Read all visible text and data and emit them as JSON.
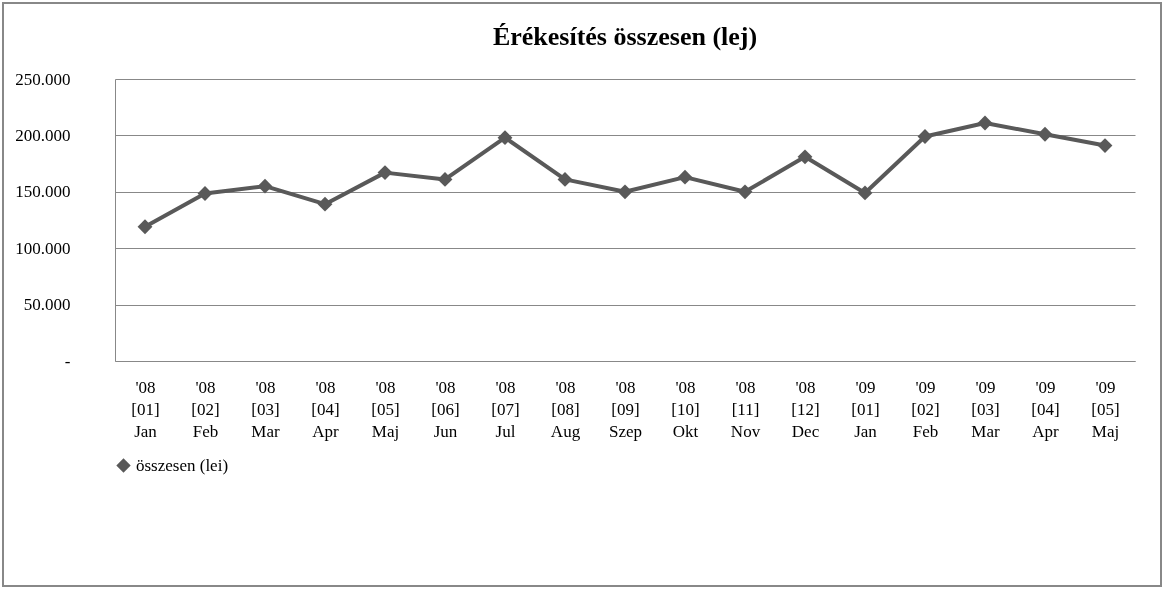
{
  "chart_data": {
    "type": "line",
    "title": "Érékesítés összesen  (lej)",
    "categories": [
      "'08\n[01]\nJan",
      "'08\n[02]\nFeb",
      "'08\n[03]\nMar",
      "'08\n[04]\nApr",
      "'08\n[05]\nMaj",
      "'08\n[06]\nJun",
      "'08\n[07]\nJul",
      "'08\n[08]\nAug",
      "'08\n[09]\nSzep",
      "'08\n[10]\nOkt",
      "'08\n[11]\nNov",
      "'08\n[12]\nDec",
      "'09\n[01]\nJan",
      "'09\n[02]\nFeb",
      "'09\n[03]\nMar",
      "'09\n[04]\nApr",
      "'09\n[05]\nMaj"
    ],
    "series": [
      {
        "name": "összesen (lei)",
        "color": "#595959",
        "values": [
          119000,
          148500,
          155000,
          139000,
          167000,
          161000,
          198000,
          161000,
          150000,
          163000,
          150000,
          181000,
          149000,
          199000,
          211000,
          201000,
          191000
        ]
      }
    ],
    "ylim": [
      0,
      250000
    ],
    "yticks": [
      {
        "value": 0,
        "label": "-"
      },
      {
        "value": 50000,
        "label": "50.000"
      },
      {
        "value": 100000,
        "label": "100.000"
      },
      {
        "value": 150000,
        "label": "150.000"
      },
      {
        "value": 200000,
        "label": "200.000"
      },
      {
        "value": 250000,
        "label": "250.000"
      }
    ],
    "grid": "y",
    "legend": "bottom",
    "marker": "diamond",
    "line_style": "solid"
  }
}
